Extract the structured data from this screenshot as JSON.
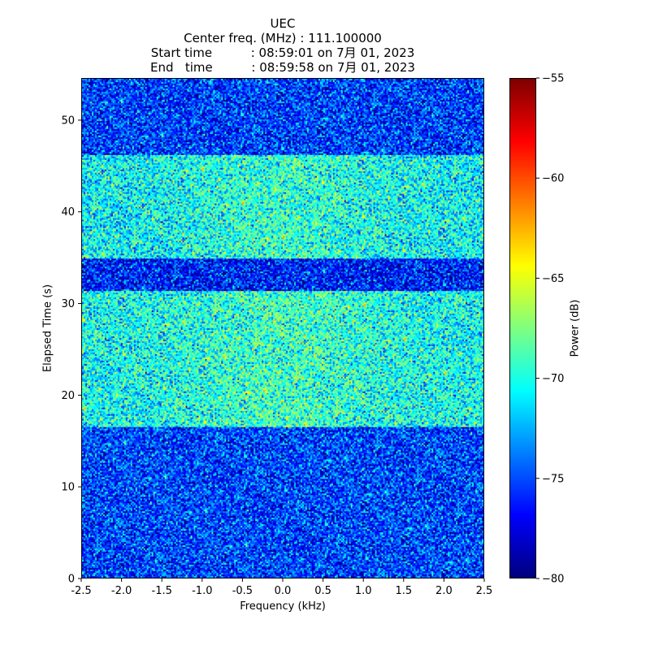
{
  "chart_data": {
    "type": "heatmap",
    "title_lines": [
      "UEC",
      "Center freq. (MHz) : 111.100000",
      "Start time          : 08:59:01 on 7月 01, 2023",
      "End   time          : 08:59:58 on 7月 01, 2023"
    ],
    "xlabel": "Frequency (kHz)",
    "ylabel": "Elapsed Time (s)",
    "xlim": [
      -2.5,
      2.5
    ],
    "ylim": [
      0,
      54.6
    ],
    "x_ticks": [
      "-2.5",
      "-2.0",
      "-1.5",
      "-1.0",
      "-0.5",
      "0.0",
      "0.5",
      "1.0",
      "1.5",
      "2.0",
      "2.5"
    ],
    "y_ticks": [
      "0",
      "10",
      "20",
      "30",
      "40",
      "50"
    ],
    "colorbar": {
      "label": "Power (dB)",
      "range": [
        -80,
        -55
      ],
      "ticks": [
        "−80",
        "−75",
        "−70",
        "−65",
        "−60",
        "−55"
      ],
      "colormap": "jet"
    },
    "time_bands": [
      {
        "start": 0,
        "end": 16.6,
        "mean_db": -75.2
      },
      {
        "start": 16.6,
        "end": 31.5,
        "mean_db": -70.3
      },
      {
        "start": 31.5,
        "end": 35.0,
        "mean_db": -76.2
      },
      {
        "start": 35.0,
        "end": 46.4,
        "mean_db": -70.6
      },
      {
        "start": 46.4,
        "end": 54.6,
        "mean_db": -75.4
      }
    ]
  }
}
